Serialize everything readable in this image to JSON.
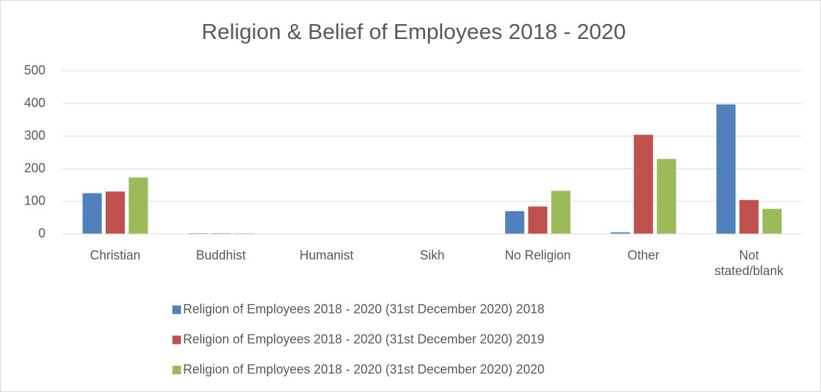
{
  "chart_data": {
    "type": "bar",
    "title": "Religion & Belief of Employees 2018 - 2020",
    "categories": [
      "Christian",
      "Buddhist",
      "Humanist",
      "Sikh",
      "No Religion",
      "Other",
      "Not stated/blank"
    ],
    "series": [
      {
        "name": "Religion of Employees 2018 - 2020 (31st December 2020) 2018",
        "color": "#4f81bd",
        "values": [
          125,
          2,
          0,
          0,
          70,
          5,
          397
        ]
      },
      {
        "name": "Religion of Employees 2018 - 2020 (31st December 2020) 2019",
        "color": "#c0504d",
        "values": [
          130,
          2,
          0,
          0,
          84,
          304,
          104
        ]
      },
      {
        "name": "Religion of Employees 2018 - 2020 (31st December 2020) 2020",
        "color": "#9bbb59",
        "values": [
          173,
          2,
          0,
          0,
          132,
          230,
          77
        ]
      }
    ],
    "ylim": [
      0,
      500
    ],
    "yticks": [
      0,
      100,
      200,
      300,
      400,
      500
    ],
    "grid": true,
    "legend": "bottom"
  }
}
